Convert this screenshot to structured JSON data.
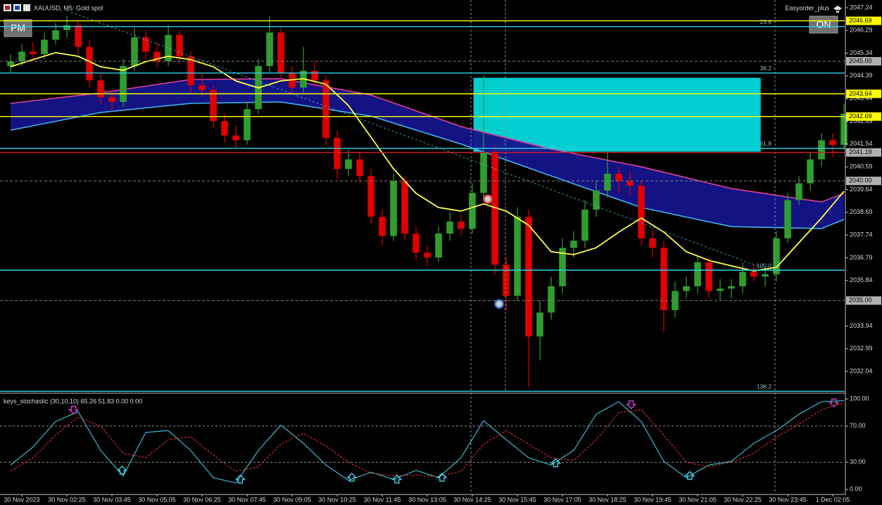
{
  "chart_data": {
    "type": "candlestick",
    "title": "XAUUSD, M5:  Gold spot",
    "indicator_label": "Easyorder_plus",
    "buttons": [
      "PM",
      "ON"
    ],
    "up_color": "#2f9e2f",
    "down_color": "#e00000",
    "xlim": [
      -0.94,
      74.06
    ],
    "ylim": [
      2031.16,
      2047.56
    ],
    "yticks": [
      2047.24,
      2046.29,
      2045.34,
      2044.39,
      2043.44,
      2042.49,
      2041.54,
      2040.59,
      2039.64,
      2038.69,
      2037.74,
      2036.79,
      2035.84,
      2033.94,
      2032.99,
      2032.04
    ],
    "xticks": [
      {
        "value": 1,
        "label": "30 Nov 2023"
      },
      {
        "value": 5,
        "label": "30 Nov 02:25"
      },
      {
        "value": 9,
        "label": "30 Nov 03:45"
      },
      {
        "value": 13,
        "label": "30 Nov 05:05"
      },
      {
        "value": 17,
        "label": "30 Nov 06:25"
      },
      {
        "value": 21,
        "label": "30 Nov 07:45"
      },
      {
        "value": 25,
        "label": "30 Nov 09:05"
      },
      {
        "value": 29,
        "label": "30 Nov 10:25"
      },
      {
        "value": 33,
        "label": "30 Nov 11:45"
      },
      {
        "value": 37,
        "label": "30 Nov 13:05"
      },
      {
        "value": 41,
        "label": "30 Nov 14:25"
      },
      {
        "value": 45,
        "label": "30 Nov 15:45"
      },
      {
        "value": 49,
        "label": "30 Nov 17:05"
      },
      {
        "value": 53,
        "label": "30 Nov 18:25"
      },
      {
        "value": 57,
        "label": "30 Nov 19:45"
      },
      {
        "value": 61,
        "label": "30 Nov 21:05"
      },
      {
        "value": 65,
        "label": "30 Nov 22:25"
      },
      {
        "value": 69,
        "label": "30 Nov 23:45"
      },
      {
        "value": 73,
        "label": "1 Dec 02:05"
      }
    ],
    "candles": {
      "open": [
        2044.8,
        2045.0,
        2045.4,
        2045.3,
        2045.9,
        2046.3,
        2046.5,
        2045.6,
        2044.2,
        2043.5,
        2043.3,
        2044.8,
        2046.0,
        2045.4,
        2045.0,
        2046.1,
        2045.2,
        2044.0,
        2043.8,
        2042.5,
        2041.9,
        2041.7,
        2043.0,
        2044.8,
        2046.2,
        2044.5,
        2043.9,
        2044.6,
        2044.2,
        2041.8,
        2040.5,
        2040.9,
        2040.2,
        2038.5,
        2037.7,
        2040.0,
        2037.8,
        2037.0,
        2036.8,
        2037.8,
        2038.3,
        2038.0,
        2039.5,
        2041.2,
        2036.5,
        2035.2,
        2038.5,
        2033.5,
        2034.5,
        2035.6,
        2037.2,
        2037.5,
        2038.8,
        2039.6,
        2040.3,
        2040.0,
        2039.8,
        2037.6,
        2037.2,
        2034.6,
        2035.4,
        2035.6,
        2036.6,
        2035.4,
        2035.5,
        2035.6,
        2036.2,
        2036.0,
        2036.1,
        2037.6,
        2039.2,
        2039.9,
        2040.9,
        2041.7,
        2041.5
      ],
      "high": [
        2045.3,
        2045.7,
        2045.8,
        2046.2,
        2046.6,
        2046.9,
        2046.7,
        2045.9,
        2044.5,
        2043.8,
        2045.1,
        2046.4,
        2046.3,
        2045.8,
        2046.5,
        2046.3,
        2045.4,
        2044.5,
        2044.0,
        2042.8,
        2042.3,
        2043.3,
        2045.1,
        2046.9,
        2046.4,
        2044.8,
        2045.6,
        2045.0,
        2044.4,
        2042.1,
        2041.3,
        2041.2,
        2040.5,
        2038.8,
        2040.3,
        2040.2,
        2038.1,
        2037.3,
        2038.1,
        2038.7,
        2038.6,
        2039.9,
        2044.4,
        2041.5,
        2036.8,
        2038.9,
        2038.8,
        2035.0,
        2036.0,
        2037.6,
        2037.9,
        2039.2,
        2040.0,
        2041.2,
        2040.6,
        2040.4,
        2040.0,
        2038.0,
        2037.5,
        2035.8,
        2036.0,
        2036.9,
        2036.8,
        2035.9,
        2035.9,
        2036.6,
        2036.5,
        2036.4,
        2037.9,
        2039.5,
        2040.2,
        2041.2,
        2042.0,
        2042.0,
        2043.2
      ],
      "low": [
        2044.5,
        2044.8,
        2045.0,
        2045.1,
        2045.7,
        2046.0,
        2045.3,
        2043.9,
        2043.2,
        2042.9,
        2043.1,
        2044.6,
        2045.1,
        2044.7,
        2044.8,
        2044.9,
        2043.7,
        2043.5,
        2042.2,
        2041.6,
        2041.4,
        2041.5,
        2042.8,
        2044.5,
        2044.2,
        2043.6,
        2043.7,
        2043.9,
        2041.5,
        2040.1,
        2040.2,
        2039.9,
        2038.2,
        2037.3,
        2037.5,
        2037.5,
        2036.7,
        2036.4,
        2036.6,
        2037.5,
        2037.7,
        2037.8,
        2039.2,
        2036.1,
        2034.6,
        2035.0,
        2031.4,
        2032.5,
        2034.2,
        2035.3,
        2036.8,
        2037.2,
        2038.5,
        2039.3,
        2039.5,
        2039.4,
        2037.3,
        2036.8,
        2033.7,
        2034.3,
        2035.1,
        2035.3,
        2035.1,
        2035.0,
        2035.1,
        2035.3,
        2035.8,
        2035.6,
        2035.8,
        2037.4,
        2039.0,
        2039.6,
        2040.6,
        2041.0,
        2041.3
      ],
      "close": [
        2045.0,
        2045.4,
        2045.3,
        2045.9,
        2046.3,
        2046.5,
        2045.6,
        2044.2,
        2043.5,
        2043.3,
        2044.8,
        2046.0,
        2045.4,
        2045.0,
        2046.1,
        2045.2,
        2044.0,
        2043.8,
        2042.5,
        2041.9,
        2041.7,
        2043.0,
        2044.8,
        2046.2,
        2044.5,
        2043.9,
        2044.6,
        2044.2,
        2041.8,
        2040.5,
        2040.9,
        2040.2,
        2038.5,
        2037.7,
        2040.0,
        2037.8,
        2037.0,
        2036.8,
        2037.8,
        2038.3,
        2038.0,
        2039.5,
        2041.2,
        2036.5,
        2035.2,
        2038.5,
        2033.5,
        2034.5,
        2035.6,
        2037.2,
        2037.5,
        2038.8,
        2039.6,
        2040.3,
        2040.0,
        2039.8,
        2037.6,
        2037.2,
        2034.6,
        2035.4,
        2035.6,
        2036.6,
        2035.4,
        2035.5,
        2035.6,
        2036.2,
        2036.0,
        2036.1,
        2037.6,
        2039.2,
        2039.9,
        2040.9,
        2041.7,
        2041.5,
        2042.8
      ]
    },
    "band": {
      "fill": "#14148a",
      "upper": {
        "color": "#e040a0",
        "x": [
          0,
          8,
          16,
          24,
          32,
          40,
          48,
          56,
          64,
          72,
          74
        ],
        "values": [
          2043.24,
          2043.68,
          2044.24,
          2044.27,
          2043.59,
          2042.27,
          2041.33,
          2040.59,
          2039.68,
          2039.12,
          2039.48
        ]
      },
      "lower": {
        "color": "#40b0f0",
        "x": [
          0,
          8,
          16,
          24,
          32,
          40,
          48,
          56,
          64,
          72,
          74
        ],
        "values": [
          2042.12,
          2042.86,
          2043.24,
          2043.3,
          2042.71,
          2041.54,
          2040.21,
          2038.89,
          2038.09,
          2038.01,
          2038.39
        ]
      }
    },
    "ma": {
      "color": "#ffff40",
      "x": [
        0,
        2,
        4,
        6,
        8,
        10,
        12,
        14,
        16,
        18,
        20,
        22,
        24,
        26,
        28,
        30,
        32,
        34,
        36,
        38,
        40,
        42,
        44,
        46,
        48,
        50,
        52,
        54,
        56,
        58,
        60,
        62,
        64,
        66,
        68,
        70,
        72,
        74
      ],
      "values": [
        2044.77,
        2045.07,
        2045.36,
        2045.21,
        2044.77,
        2044.62,
        2044.98,
        2045.21,
        2045.07,
        2044.77,
        2044.18,
        2043.89,
        2044.18,
        2044.27,
        2044.04,
        2043.15,
        2041.83,
        2040.51,
        2039.48,
        2038.89,
        2038.74,
        2039.04,
        2038.74,
        2038.15,
        2037.04,
        2036.92,
        2037.21,
        2037.86,
        2038.45,
        2037.86,
        2037.04,
        2036.68,
        2036.45,
        2036.24,
        2036.39,
        2037.42,
        2038.45,
        2039.57
      ]
    },
    "levels": [
      {
        "value": 2046.69,
        "color": "#ffff00",
        "label_bg": "#ffff00",
        "dashed": false
      },
      {
        "value": 2043.64,
        "color": "#ffff00",
        "label_bg": "#ffff00",
        "dashed": false
      },
      {
        "value": 2042.69,
        "color": "#ffff00",
        "label_bg": "#ffff00",
        "dashed": false
      },
      {
        "value": 2041.19,
        "color": "#d02020",
        "label_bg": "#b0b0b0",
        "dashed": false
      },
      {
        "value": {
          "value": 2045,
          "label": "2045.00"
        },
        "color": "#808080",
        "label_bg": "#b0b0b0",
        "dashed": true
      },
      {
        "value": {
          "value": 2040,
          "label": "2040.00"
        },
        "color": "#808080",
        "label_bg": "#b0b0b0",
        "dashed": true
      },
      {
        "value": {
          "value": 2035,
          "label": "2035.00"
        },
        "color": "#808080",
        "label_bg": "#b0b0b0",
        "dashed": true
      }
    ],
    "fib_color": "#30d0e8",
    "fib": [
      {
        "label": "23.6",
        "value": 2046.45
      },
      {
        "label": "38.2",
        "value": 2044.51
      },
      {
        "label": "61.8",
        "value": 2041.36
      },
      {
        "label": "100.0",
        "value": 2036.27
      },
      {
        "label": "138.2",
        "value": 2031.21
      }
    ],
    "zone": {
      "color": "#00ced1",
      "x_range": [
        41.1,
        66.6
      ],
      "price_range": [
        2041.22,
        2044.31
      ]
    },
    "markers": {
      "x": [
        42.37,
        43.38
      ],
      "values": [
        2039.24,
        2034.86
      ],
      "colors": [
        "#e05050",
        "#4080e0"
      ]
    },
    "subchart": {
      "title": "keys_stochastic (30,10,10) 65.26 51.83 0.00 0.00",
      "ylim": [
        -4.8,
        104.8
      ],
      "yticks": [
        {
          "value": 100,
          "label": "100.00"
        },
        {
          "value": 70,
          "label": "70.00"
        },
        {
          "value": 30,
          "label": "30.00"
        },
        {
          "value": 0,
          "label": "0.00"
        }
      ],
      "series": [
        {
          "color": "#40c8e0",
          "dashed": false,
          "x": [
            0,
            2,
            4,
            6,
            8,
            10,
            12,
            14,
            16,
            18,
            20,
            22,
            24,
            26,
            28,
            30,
            32,
            34,
            36,
            38,
            40,
            42,
            44,
            46,
            48,
            50,
            52,
            54,
            56,
            58,
            60,
            62,
            64,
            66,
            68,
            70,
            72,
            74
          ],
          "values": [
            27,
            47,
            75,
            86,
            43,
            15,
            63,
            65,
            43,
            13,
            7,
            43,
            71,
            51,
            27,
            10,
            19,
            11,
            21,
            13,
            35,
            76,
            55,
            35,
            27,
            43,
            83,
            97,
            75,
            31,
            13,
            27,
            31,
            51,
            65,
            83,
            97,
            98
          ]
        },
        {
          "color": "#e03030",
          "dashed": true,
          "x": [
            0,
            2,
            4,
            6,
            8,
            10,
            12,
            14,
            16,
            18,
            20,
            22,
            24,
            26,
            28,
            30,
            32,
            34,
            36,
            38,
            40,
            42,
            44,
            46,
            48,
            50,
            52,
            54,
            56,
            58,
            60,
            62,
            64,
            66,
            68,
            70,
            72,
            74
          ],
          "values": [
            20,
            35,
            60,
            80,
            70,
            40,
            35,
            55,
            58,
            38,
            20,
            25,
            50,
            62,
            48,
            30,
            18,
            15,
            16,
            14,
            20,
            50,
            65,
            50,
            35,
            32,
            55,
            85,
            88,
            60,
            30,
            25,
            30,
            40,
            58,
            72,
            88,
            96
          ]
        }
      ],
      "sell_signals": {
        "color": "#d040d0",
        "x": [
          5.6,
          55.1,
          73.1
        ],
        "values": [
          88,
          94,
          96
        ]
      },
      "buy_signals": {
        "color": "#40d8f0",
        "x": [
          9.9,
          20.4,
          30.3,
          34.3,
          38.3,
          48.4,
          60.3
        ],
        "values": [
          21,
          11,
          13,
          11,
          13,
          29,
          15
        ]
      }
    }
  }
}
